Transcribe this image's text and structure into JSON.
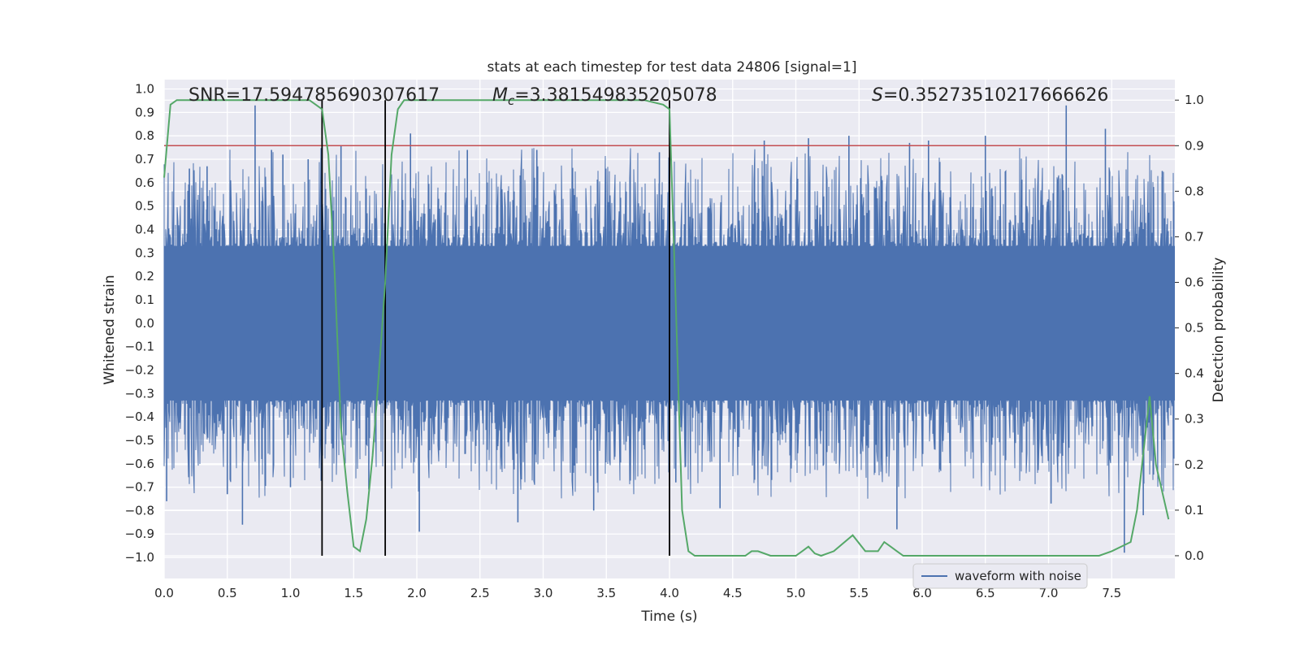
{
  "chart_data": {
    "type": "line",
    "title": "stats at each timestep for test data 24806 [signal=1]",
    "xlabel": "Time (s)",
    "ylabel": "Whitened strain",
    "y2label": "Detection probability",
    "xlim": [
      0.0,
      8.0
    ],
    "ylim": [
      -1.09,
      1.04
    ],
    "y2lim": [
      -0.05,
      1.045
    ],
    "xticks": [
      "0.0",
      "0.5",
      "1.0",
      "1.5",
      "2.0",
      "2.5",
      "3.0",
      "3.5",
      "4.0",
      "4.5",
      "5.0",
      "5.5",
      "6.0",
      "6.5",
      "7.0",
      "7.5"
    ],
    "yticks": [
      "1.0",
      "0.9",
      "0.8",
      "0.7",
      "0.6",
      "0.5",
      "0.4",
      "0.3",
      "0.2",
      "0.1",
      "0.0",
      "-0.1",
      "-0.2",
      "-0.3",
      "-0.4",
      "-0.5",
      "-0.6",
      "-0.7",
      "-0.8",
      "-0.9",
      "-1.0"
    ],
    "y2ticks": [
      "1.0",
      "0.9",
      "0.8",
      "0.7",
      "0.6",
      "0.5",
      "0.4",
      "0.3",
      "0.2",
      "0.1",
      "0.0"
    ],
    "annotations": {
      "snr": "SNR=17.594785690307617",
      "mc_symbol": "M",
      "mc_subscript": "c",
      "mc_value": "=3.381549835205078",
      "s_symbol": "S",
      "s_value": "=0.35273510217666626"
    },
    "legend": {
      "label": "waveform with noise",
      "position": "lower-right"
    },
    "threshold": {
      "value": 0.9,
      "color": "#c44e52"
    },
    "vertical_lines": [
      1.25,
      1.75,
      4.0
    ],
    "waveform": {
      "name": "waveform with noise",
      "color": "#4c72b0",
      "core_band": 0.33,
      "spikes": [
        {
          "x": 0.02,
          "y": -0.76
        },
        {
          "x": 0.2,
          "y": 0.66
        },
        {
          "x": 0.34,
          "y": 0.67
        },
        {
          "x": 0.5,
          "y": -0.73
        },
        {
          "x": 0.62,
          "y": -0.86
        },
        {
          "x": 0.72,
          "y": 0.93
        },
        {
          "x": 0.85,
          "y": 0.74
        },
        {
          "x": 0.94,
          "y": 0.72
        },
        {
          "x": 1.0,
          "y": -0.7
        },
        {
          "x": 1.14,
          "y": 0.7
        },
        {
          "x": 1.4,
          "y": 0.76
        },
        {
          "x": 1.62,
          "y": -0.71
        },
        {
          "x": 1.95,
          "y": 0.81
        },
        {
          "x": 2.02,
          "y": -0.89
        },
        {
          "x": 2.4,
          "y": 0.74
        },
        {
          "x": 2.8,
          "y": -0.85
        },
        {
          "x": 2.95,
          "y": 0.74
        },
        {
          "x": 3.4,
          "y": -0.8
        },
        {
          "x": 3.92,
          "y": 0.73
        },
        {
          "x": 4.05,
          "y": -0.68
        },
        {
          "x": 4.4,
          "y": -0.79
        },
        {
          "x": 4.75,
          "y": 0.78
        },
        {
          "x": 5.1,
          "y": 0.79
        },
        {
          "x": 5.42,
          "y": 0.8
        },
        {
          "x": 5.8,
          "y": -0.88
        },
        {
          "x": 5.9,
          "y": 0.77
        },
        {
          "x": 6.05,
          "y": 0.78
        },
        {
          "x": 6.5,
          "y": 0.8
        },
        {
          "x": 7.02,
          "y": -0.77
        },
        {
          "x": 7.14,
          "y": 0.93
        },
        {
          "x": 7.45,
          "y": 0.83
        },
        {
          "x": 7.6,
          "y": -0.98
        },
        {
          "x": 7.75,
          "y": -0.82
        },
        {
          "x": 7.9,
          "y": 0.65
        }
      ]
    },
    "series": [
      {
        "name": "detection probability",
        "axis": "right",
        "color": "#55a868",
        "x": [
          0.0,
          0.05,
          0.1,
          0.2,
          0.5,
          0.8,
          1.0,
          1.15,
          1.2,
          1.25,
          1.3,
          1.35,
          1.4,
          1.45,
          1.5,
          1.55,
          1.6,
          1.65,
          1.7,
          1.75,
          1.8,
          1.85,
          1.9,
          2.0,
          2.2,
          2.3,
          2.5,
          2.8,
          3.0,
          3.25,
          3.5,
          3.8,
          3.95,
          4.0,
          4.05,
          4.1,
          4.15,
          4.2,
          4.3,
          4.5,
          4.6,
          4.65,
          4.7,
          4.8,
          4.95,
          5.0,
          5.05,
          5.1,
          5.15,
          5.2,
          5.3,
          5.45,
          5.55,
          5.65,
          5.7,
          5.75,
          5.8,
          5.85,
          5.95,
          6.25,
          6.5,
          6.9,
          7.2,
          7.4,
          7.5,
          7.65,
          7.7,
          7.8,
          7.85,
          7.95
        ],
        "y": [
          0.83,
          0.99,
          1.0,
          1.0,
          1.0,
          1.0,
          1.0,
          1.0,
          0.99,
          0.98,
          0.88,
          0.62,
          0.28,
          0.14,
          0.02,
          0.01,
          0.08,
          0.22,
          0.4,
          0.6,
          0.88,
          0.98,
          1.0,
          1.0,
          1.0,
          1.0,
          1.0,
          1.0,
          1.0,
          1.0,
          1.0,
          1.0,
          0.99,
          0.98,
          0.55,
          0.1,
          0.01,
          0.0,
          0.0,
          0.0,
          0.0,
          0.01,
          0.01,
          0.0,
          0.0,
          0.0,
          0.01,
          0.02,
          0.005,
          0.0,
          0.01,
          0.045,
          0.01,
          0.01,
          0.03,
          0.02,
          0.01,
          0.0,
          0.0,
          0.0,
          0.0,
          0.0,
          0.0,
          0.0,
          0.01,
          0.03,
          0.1,
          0.35,
          0.2,
          0.08
        ]
      }
    ]
  }
}
